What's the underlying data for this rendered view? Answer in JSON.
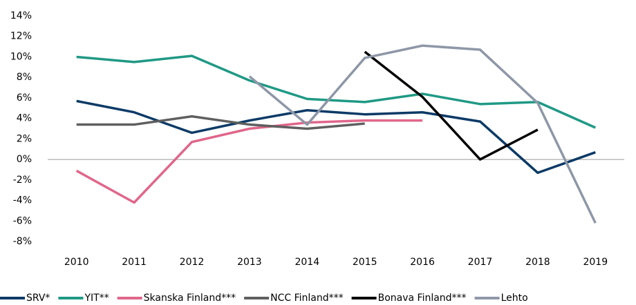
{
  "chart_data": {
    "type": "line",
    "categories": [
      "2010",
      "2011",
      "2012",
      "2013",
      "2014",
      "2015",
      "2016",
      "2017",
      "2018",
      "2019"
    ],
    "series": [
      {
        "name": "SRV*",
        "color": "#0b3a66",
        "values": [
          5.7,
          4.6,
          2.6,
          3.8,
          4.8,
          4.4,
          4.6,
          3.7,
          -1.3,
          0.7
        ]
      },
      {
        "name": "YIT**",
        "color": "#1f9985",
        "values": [
          10.0,
          9.5,
          10.1,
          7.7,
          5.9,
          5.6,
          6.4,
          5.4,
          5.6,
          3.1
        ]
      },
      {
        "name": "Skanska Finland***",
        "color": "#e0668a",
        "values": [
          -1.1,
          -4.2,
          1.7,
          3.0,
          3.6,
          3.8,
          3.8,
          null,
          null,
          null
        ]
      },
      {
        "name": "NCC Finland***",
        "color": "#5f5f5f",
        "values": [
          3.4,
          3.4,
          4.2,
          3.4,
          3.0,
          3.5,
          null,
          null,
          null,
          null
        ]
      },
      {
        "name": "Bonava Finland***",
        "color": "#000000",
        "values": [
          null,
          null,
          null,
          null,
          null,
          10.5,
          6.1,
          0,
          2.9,
          null
        ]
      },
      {
        "name": "Lehto",
        "color": "#8e97a7",
        "values": [
          null,
          null,
          null,
          8.1,
          3.4,
          9.9,
          11.1,
          10.7,
          5.5,
          -6.2
        ]
      }
    ],
    "ylim": [
      -8,
      14
    ],
    "yticks": [
      {
        "value": -8,
        "label": "-8%"
      },
      {
        "value": -6,
        "label": "-6%"
      },
      {
        "value": -4,
        "label": "-4%"
      },
      {
        "value": -2,
        "label": "-2%"
      },
      {
        "value": 0,
        "label": "0%"
      },
      {
        "value": 2,
        "label": "2%"
      },
      {
        "value": 4,
        "label": "4%"
      },
      {
        "value": 6,
        "label": "6%"
      },
      {
        "value": 8,
        "label": "8%"
      },
      {
        "value": 10,
        "label": "10%"
      },
      {
        "value": 12,
        "label": "12%"
      },
      {
        "value": 14,
        "label": "14%"
      }
    ],
    "grid": false
  }
}
